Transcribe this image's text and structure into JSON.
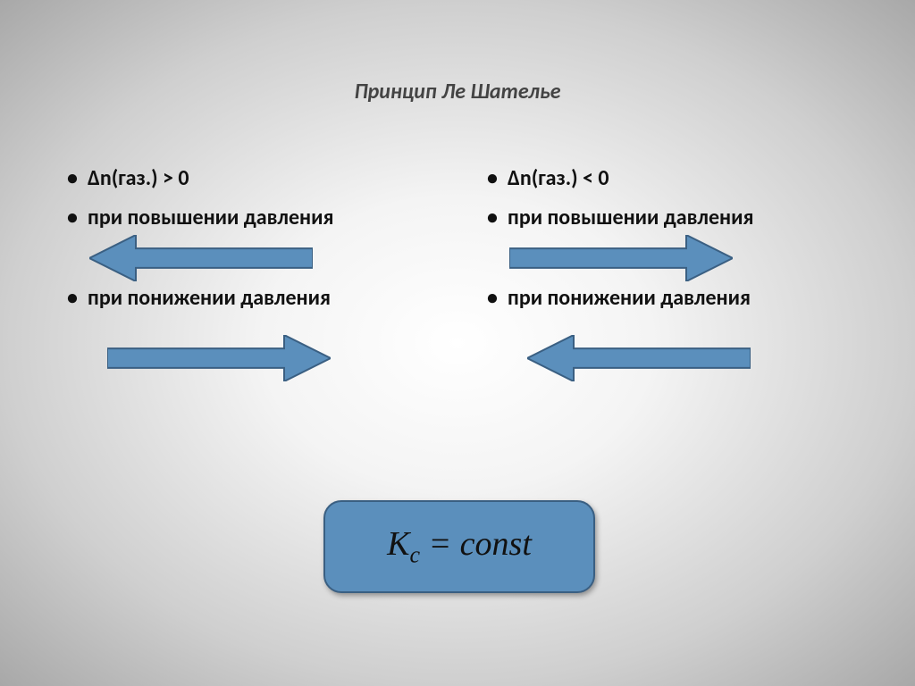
{
  "title": "Принцип Ле Шателье",
  "left": {
    "b1": "Δn(газ.) > 0",
    "b2": "при повышении давления",
    "b3": "при понижении давления"
  },
  "right": {
    "b1": "Δn(газ.) < 0",
    "b2": "при повышении давления",
    "b3": "при понижении давления"
  },
  "equation": {
    "K": "K",
    "sub": "c",
    "rest": " = const"
  },
  "style": {
    "arrow_fill": "#5b8fbc",
    "arrow_stroke": "#3a5f82",
    "arrow_stroke_width": 2,
    "arrow_length": 250,
    "arrow_height": 52,
    "box_fill": "#5b8fbc",
    "box_stroke": "#3a5f82",
    "box_stroke_width": 2,
    "title_fontsize": 24,
    "bullet_fontsize": 24,
    "eq_fontsize": 38,
    "arrows": {
      "left_top": {
        "dir": "left",
        "x": 30
      },
      "left_bot": {
        "dir": "right",
        "x": 50
      },
      "right_top": {
        "dir": "right",
        "x": 30
      },
      "right_bot": {
        "dir": "left",
        "x": 50
      }
    }
  }
}
